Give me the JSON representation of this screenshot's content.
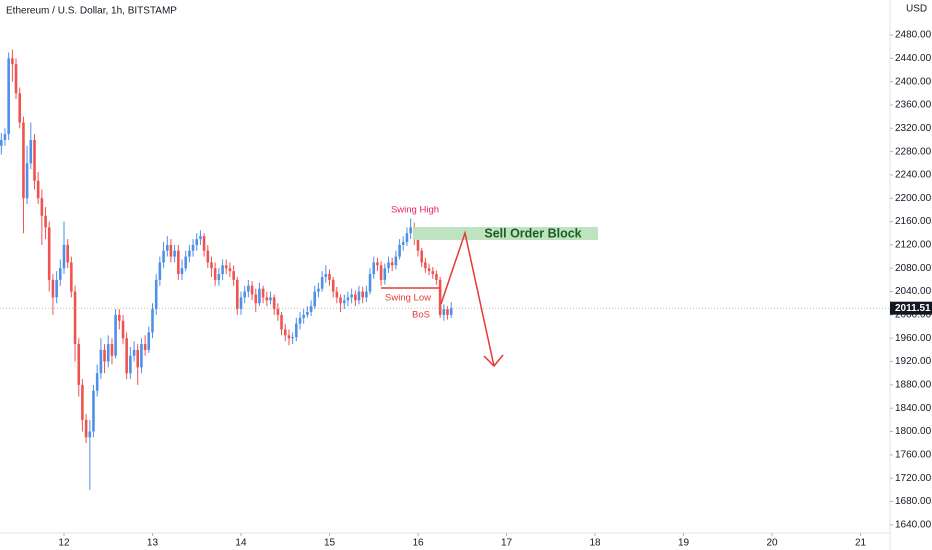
{
  "chart_data": {
    "type": "candlestick",
    "title": "Ethereum / U.S. Dollar, 1h, BITSTAMP",
    "currency": "USD",
    "up_color": "#4e8fe8",
    "down_color": "#ef5350",
    "grid": false,
    "x": [
      11.292,
      11.333,
      11.375,
      11.417,
      11.458,
      11.5,
      11.542,
      11.583,
      11.625,
      11.667,
      11.708,
      11.75,
      11.792,
      11.833,
      11.875,
      11.917,
      11.958,
      12,
      12.042,
      12.083,
      12.125,
      12.167,
      12.208,
      12.25,
      12.292,
      12.333,
      12.375,
      12.417,
      12.458,
      12.5,
      12.542,
      12.583,
      12.625,
      12.667,
      12.708,
      12.75,
      12.792,
      12.833,
      12.875,
      12.917,
      12.958,
      13,
      13.042,
      13.083,
      13.125,
      13.167,
      13.208,
      13.25,
      13.292,
      13.333,
      13.375,
      13.417,
      13.458,
      13.5,
      13.542,
      13.583,
      13.625,
      13.667,
      13.708,
      13.75,
      13.792,
      13.833,
      13.875,
      13.917,
      13.958,
      14,
      14.042,
      14.083,
      14.125,
      14.167,
      14.208,
      14.25,
      14.292,
      14.333,
      14.375,
      14.417,
      14.458,
      14.5,
      14.542,
      14.583,
      14.625,
      14.667,
      14.708,
      14.75,
      14.792,
      14.833,
      14.875,
      14.917,
      14.958,
      15,
      15.042,
      15.083,
      15.125,
      15.167,
      15.208,
      15.25,
      15.292,
      15.333,
      15.375,
      15.417,
      15.458,
      15.5,
      15.542,
      15.583,
      15.625,
      15.667,
      15.708,
      15.75,
      15.792,
      15.833,
      15.875,
      15.917,
      15.958,
      16,
      16.042,
      16.083,
      16.125,
      16.167,
      16.208,
      16.25,
      16.292,
      16.333,
      16.375
    ],
    "open": [
      2290,
      2300,
      2310,
      2440,
      2430,
      2380,
      2330,
      2200,
      2260,
      2300,
      2230,
      2200,
      2170,
      2150,
      2060,
      2030,
      2060,
      2080,
      2120,
      2090,
      2040,
      1950,
      1880,
      1820,
      1790,
      1800,
      1870,
      1900,
      1940,
      1920,
      1950,
      1930,
      2000,
      1990,
      1960,
      1900,
      1930,
      1940,
      1910,
      1950,
      1940,
      1970,
      2010,
      2060,
      2090,
      2110,
      2120,
      2100,
      2110,
      2070,
      2080,
      2100,
      2110,
      2120,
      2130,
      2135,
      2110,
      2090,
      2080,
      2060,
      2070,
      2085,
      2080,
      2075,
      2060,
      2010,
      2030,
      2040,
      2050,
      2035,
      2020,
      2045,
      2030,
      2025,
      2030,
      2010,
      2000,
      1975,
      1965,
      1960,
      1962,
      1985,
      1995,
      2000,
      2005,
      2015,
      2040,
      2045,
      2065,
      2070,
      2060,
      2040,
      2030,
      2020,
      2025,
      2030,
      2035,
      2025,
      2040,
      2030,
      2040,
      2070,
      2090,
      2085,
      2060,
      2080,
      2090,
      2085,
      2100,
      2120,
      2125,
      2140,
      2150,
      2130,
      2110,
      2090,
      2080,
      2075,
      2070,
      2060,
      2000,
      2010,
      2000
    ],
    "high": [
      2312,
      2320,
      2450,
      2455,
      2440,
      2390,
      2340,
      2290,
      2330,
      2310,
      2245,
      2215,
      2185,
      2160,
      2070,
      2075,
      2095,
      2160,
      2130,
      2100,
      2050,
      1960,
      1890,
      1830,
      1820,
      1880,
      1915,
      1960,
      1950,
      1965,
      1960,
      2010,
      2010,
      2000,
      1970,
      1945,
      1955,
      1950,
      1960,
      1965,
      1980,
      2020,
      2070,
      2100,
      2125,
      2135,
      2130,
      2120,
      2120,
      2095,
      2110,
      2120,
      2130,
      2140,
      2145,
      2140,
      2120,
      2100,
      2090,
      2080,
      2095,
      2095,
      2090,
      2085,
      2065,
      2040,
      2050,
      2060,
      2058,
      2045,
      2055,
      2050,
      2040,
      2040,
      2035,
      2020,
      2005,
      1985,
      1975,
      1970,
      1995,
      2005,
      2010,
      2015,
      2025,
      2050,
      2055,
      2075,
      2085,
      2078,
      2065,
      2048,
      2035,
      2035,
      2040,
      2045,
      2042,
      2050,
      2048,
      2050,
      2080,
      2100,
      2098,
      2092,
      2088,
      2100,
      2098,
      2110,
      2130,
      2135,
      2150,
      2165,
      2158,
      2138,
      2115,
      2098,
      2088,
      2082,
      2076,
      2065,
      2018,
      2015,
      2022
    ],
    "low": [
      2275,
      2290,
      2300,
      2400,
      2370,
      2320,
      2140,
      2190,
      2250,
      2215,
      2190,
      2120,
      2130,
      2040,
      2000,
      2020,
      2050,
      2070,
      2080,
      2030,
      1920,
      1860,
      1800,
      1780,
      1700,
      1790,
      1860,
      1890,
      1900,
      1910,
      1915,
      1925,
      1975,
      1950,
      1890,
      1890,
      1920,
      1880,
      1900,
      1930,
      1935,
      1960,
      2000,
      2050,
      2080,
      2100,
      2090,
      2090,
      2060,
      2060,
      2075,
      2090,
      2100,
      2110,
      2120,
      2100,
      2080,
      2065,
      2050,
      2050,
      2060,
      2070,
      2065,
      2050,
      2000,
      2000,
      2020,
      2030,
      2025,
      2005,
      2015,
      2020,
      2015,
      2018,
      2000,
      1990,
      1965,
      1955,
      1948,
      1950,
      1955,
      1975,
      1985,
      1995,
      1998,
      2010,
      2030,
      2040,
      2055,
      2050,
      2030,
      2020,
      2005,
      2010,
      2015,
      2020,
      2015,
      2018,
      2020,
      2022,
      2035,
      2062,
      2075,
      2050,
      2052,
      2072,
      2075,
      2078,
      2095,
      2110,
      2118,
      2130,
      2120,
      2100,
      2082,
      2072,
      2068,
      2062,
      2052,
      1995,
      1990,
      1992,
      1995
    ],
    "close": [
      2300,
      2310,
      2440,
      2430,
      2380,
      2330,
      2200,
      2260,
      2300,
      2230,
      2200,
      2170,
      2150,
      2060,
      2030,
      2060,
      2080,
      2120,
      2090,
      2040,
      1950,
      1880,
      1820,
      1790,
      1800,
      1870,
      1900,
      1940,
      1920,
      1950,
      1930,
      2000,
      1990,
      1960,
      1900,
      1930,
      1940,
      1910,
      1950,
      1940,
      1970,
      2010,
      2060,
      2090,
      2110,
      2120,
      2100,
      2110,
      2070,
      2080,
      2100,
      2110,
      2120,
      2130,
      2135,
      2110,
      2090,
      2080,
      2060,
      2070,
      2085,
      2080,
      2075,
      2060,
      2010,
      2030,
      2040,
      2050,
      2035,
      2020,
      2045,
      2030,
      2025,
      2030,
      2010,
      2000,
      1975,
      1965,
      1960,
      1962,
      1985,
      1995,
      2000,
      2005,
      2015,
      2040,
      2045,
      2065,
      2070,
      2060,
      2040,
      2030,
      2020,
      2025,
      2030,
      2035,
      2025,
      2040,
      2030,
      2040,
      2070,
      2090,
      2085,
      2060,
      2080,
      2090,
      2085,
      2100,
      2120,
      2125,
      2140,
      2150,
      2130,
      2110,
      2090,
      2080,
      2075,
      2070,
      2060,
      2000,
      2010,
      2000,
      2011.51
    ],
    "xlim": [
      11.277,
      21.333
    ],
    "ylim": [
      1626,
      2540
    ],
    "xticks": [
      12,
      13,
      14,
      15,
      16,
      17,
      18,
      19,
      20,
      21
    ],
    "yticks": [
      {
        "value": 1640,
        "label": "1640.00"
      },
      {
        "value": 1680,
        "label": "1680.00"
      },
      {
        "value": 1720,
        "label": "1720.00"
      },
      {
        "value": 1760,
        "label": "1760.00"
      },
      {
        "value": 1800,
        "label": "1800.00"
      },
      {
        "value": 1840,
        "label": "1840.00"
      },
      {
        "value": 1880,
        "label": "1880.00"
      },
      {
        "value": 1920,
        "label": "1920.00"
      },
      {
        "value": 1960,
        "label": "1960.00"
      },
      {
        "value": 2000,
        "label": "2000.00"
      },
      {
        "value": 2040,
        "label": "2040.00"
      },
      {
        "value": 2080,
        "label": "2080.00"
      },
      {
        "value": 2120,
        "label": "2120.00"
      },
      {
        "value": 2160,
        "label": "2160.00"
      },
      {
        "value": 2200,
        "label": "2200.00"
      },
      {
        "value": 2240,
        "label": "2240.00"
      },
      {
        "value": 2280,
        "label": "2280.00"
      },
      {
        "value": 2320,
        "label": "2320.00"
      },
      {
        "value": 2360,
        "label": "2360.00"
      },
      {
        "value": 2400,
        "label": "2400.00"
      },
      {
        "value": 2440,
        "label": "2440.00"
      },
      {
        "value": 2480,
        "label": "2480.00"
      }
    ],
    "annotations": {
      "swing_high": "Swing High",
      "order_block": "Sell Order Block",
      "swing_low": "Swing Low",
      "bos": "BoS"
    }
  }
}
